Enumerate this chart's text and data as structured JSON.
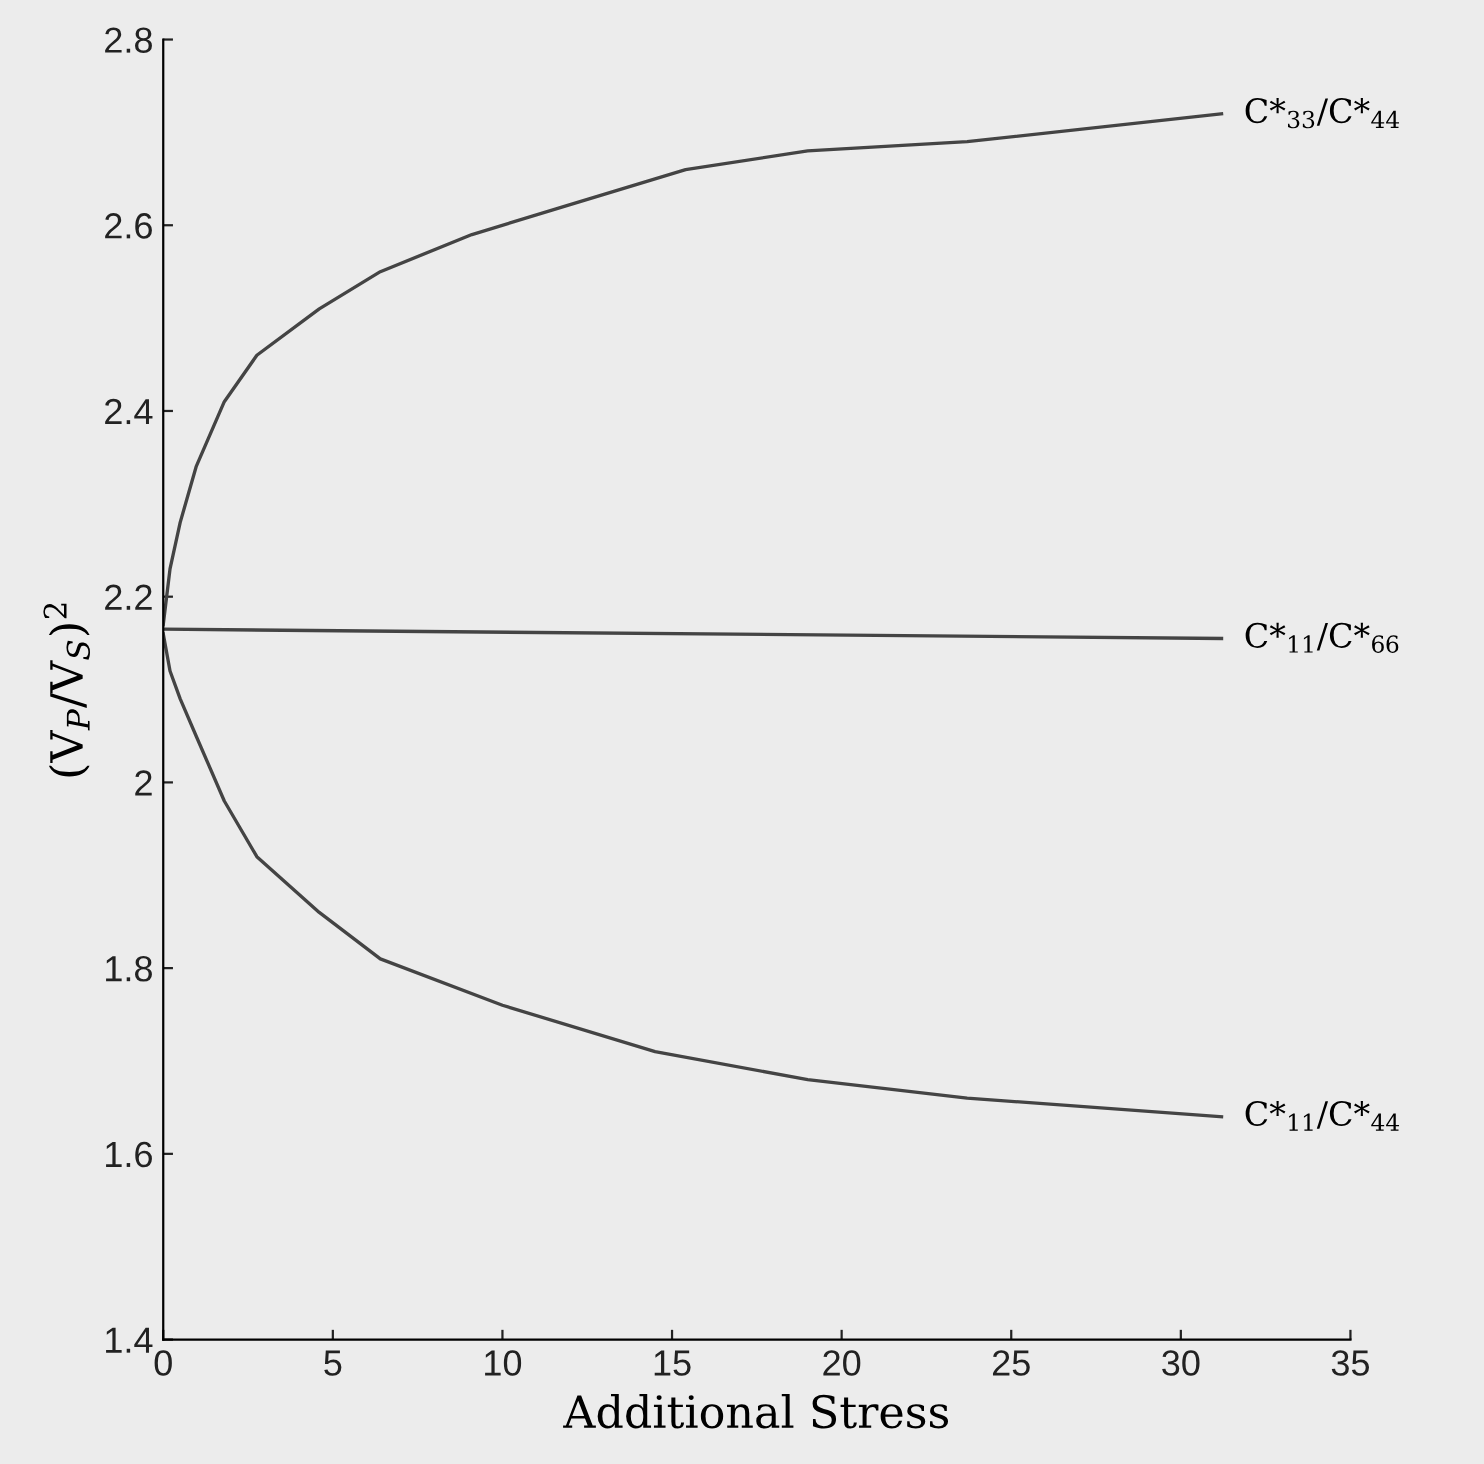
{
  "chart_data": {
    "type": "line",
    "xlabel": "Additional Stress",
    "ylabel": "(V$_{P}$/V$_{S}$)$^{2}$",
    "xlim": [
      0,
      35
    ],
    "xticks": [
      0,
      5,
      10,
      15,
      20,
      25,
      30,
      35
    ],
    "ylim": [
      1.4,
      2.8
    ],
    "yticks": [
      1.4,
      1.6,
      1.8,
      2,
      2.2,
      2.4,
      2.6,
      2.8
    ],
    "grid": false,
    "legend": false,
    "marker": "none",
    "line_style": "solid",
    "series": [
      {
        "name": "C*$_{33}$/C*$_{44}$",
        "color": "#444444",
        "x": [
          0,
          0.2,
          0.5,
          0.97,
          1.8,
          2.76,
          4.6,
          6.4,
          9.1,
          11.8,
          15.4,
          19,
          23.7,
          31.2
        ],
        "values": [
          2.17,
          2.23,
          2.28,
          2.34,
          2.41,
          2.46,
          2.51,
          2.55,
          2.59,
          2.62,
          2.66,
          2.68,
          2.69,
          2.72
        ]
      },
      {
        "name": "C*$_{11}$/C*$_{66}$",
        "color": "#444444",
        "x": [
          0,
          31.2
        ],
        "values": [
          2.165,
          2.155
        ]
      },
      {
        "name": "C*$_{11}$/C*$_{44}$",
        "color": "#444444",
        "x": [
          0,
          0.2,
          0.5,
          0.97,
          1.8,
          2.76,
          4.6,
          6.4,
          10,
          14.5,
          19,
          23.7,
          31.2
        ],
        "values": [
          2.16,
          2.12,
          2.09,
          2.05,
          1.98,
          1.92,
          1.86,
          1.81,
          1.76,
          1.71,
          1.68,
          1.66,
          1.64
        ]
      }
    ]
  }
}
